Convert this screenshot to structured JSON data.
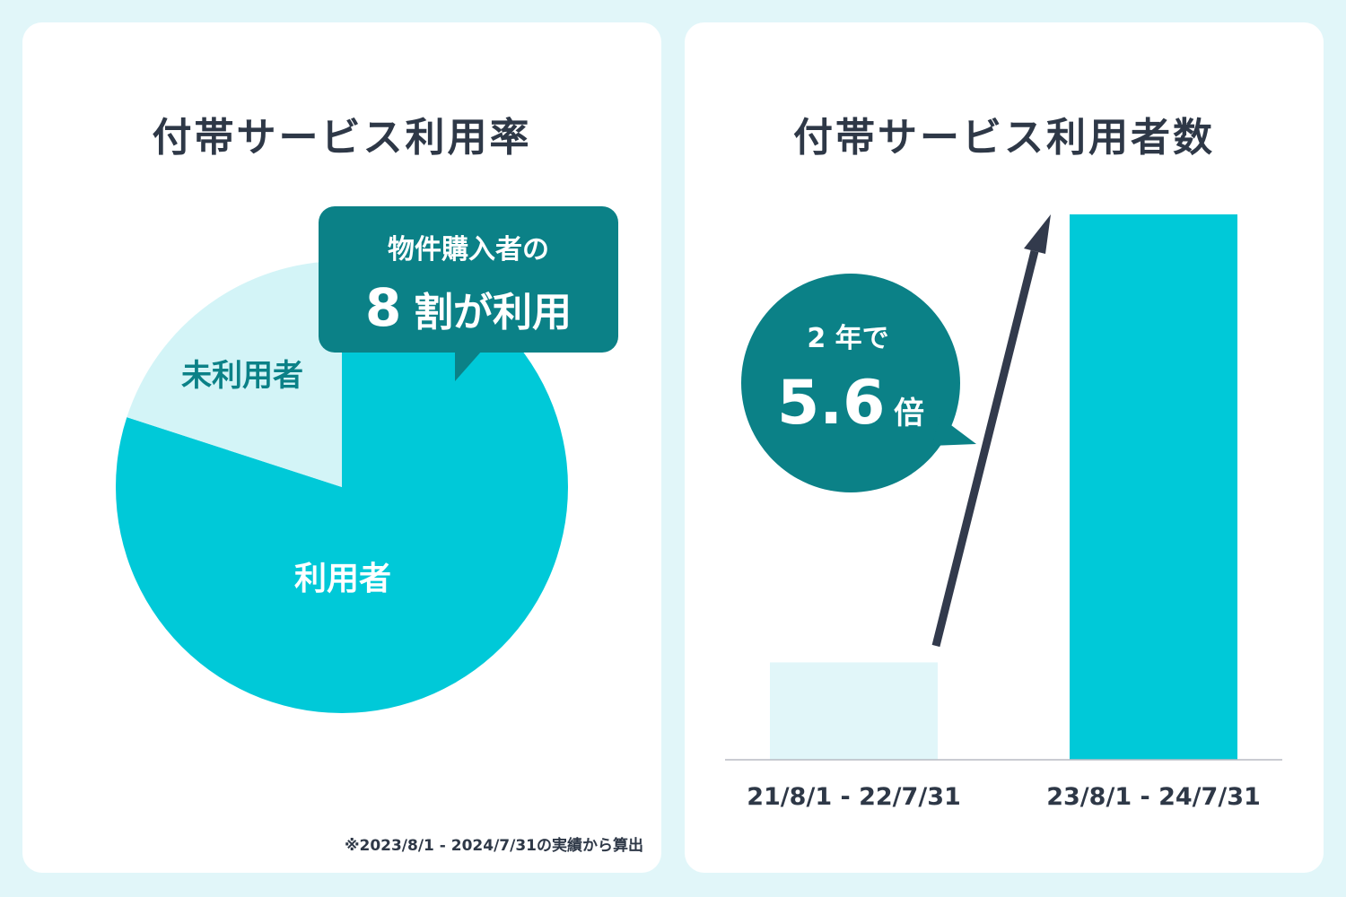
{
  "colors": {
    "background": "#e1f6f9",
    "panel": "#ffffff",
    "accent": "#00c9d8",
    "accent_light": "#d3f4f7",
    "callout": "#0b8187",
    "text": "#2e3847",
    "arrow": "#323a4c"
  },
  "left_panel": {
    "title": "付帯サービス利用率",
    "callout_line1": "物件購入者の",
    "callout_big": "8",
    "callout_rest": "割が利用",
    "footnote": "※2023/8/1 - 2024/7/31の実績から算出"
  },
  "right_panel": {
    "title": "付帯サービス利用者数",
    "badge_line1": "2 年で",
    "badge_big": "5.6",
    "badge_unit": "倍"
  },
  "chart_data": [
    {
      "type": "pie",
      "title": "付帯サービス利用率",
      "slices": [
        {
          "label": "利用者",
          "value": 80,
          "color": "#00c9d8"
        },
        {
          "label": "未利用者",
          "value": 20,
          "color": "#d3f4f7"
        }
      ]
    },
    {
      "type": "bar",
      "title": "付帯サービス利用者数",
      "categories": [
        "21/8/1 - 22/7/31",
        "23/8/1 - 24/7/31"
      ],
      "values": [
        1,
        5.6
      ],
      "colors": [
        "#e1f6f9",
        "#00c9d8"
      ],
      "ylim": [
        0,
        5.6
      ]
    }
  ]
}
